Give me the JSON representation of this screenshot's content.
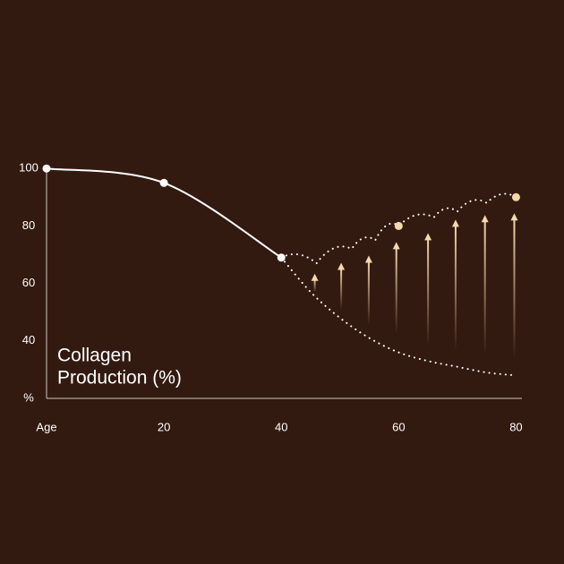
{
  "chart_data": {
    "type": "line",
    "title_lines": [
      "Collagen",
      "Production (%)"
    ],
    "background": "#331a10",
    "xlim": [
      0,
      81
    ],
    "ylim": [
      20,
      101
    ],
    "xticks": [
      {
        "value": 0,
        "label": "Age"
      },
      20,
      40,
      60,
      80
    ],
    "yticks": [
      {
        "value": 20,
        "label": "%"
      },
      40,
      60,
      80,
      100
    ],
    "series": [
      {
        "color": "#ffffff",
        "style": "solid",
        "markers": true,
        "x": [
          0,
          20,
          40
        ],
        "values": [
          100,
          95,
          69
        ]
      },
      {
        "color": "#ffffff",
        "style": "dotted",
        "markers": false,
        "x": [
          40,
          45,
          50,
          55,
          60,
          65,
          70,
          75,
          80
        ],
        "values": [
          69,
          57,
          48,
          41,
          36,
          33,
          31,
          29,
          28
        ]
      },
      {
        "color": "#ffffff",
        "style": "scallop",
        "markers": false,
        "x": [
          40,
          46,
          52,
          56,
          60,
          66,
          70,
          75,
          80
        ],
        "values": [
          69,
          67,
          72,
          75,
          80,
          83,
          85,
          88,
          90
        ]
      },
      {
        "color": "#f3d9ac",
        "style": "none",
        "markers": true,
        "x": [
          60,
          80
        ],
        "values": [
          80,
          90
        ]
      }
    ],
    "arrows": {
      "color": "#f3d9ac",
      "x": [
        45.7,
        50.2,
        54.9,
        59.6,
        65,
        69.7,
        74.7,
        79.7
      ],
      "from": [
        57,
        51,
        45.6,
        42.5,
        38.4,
        36.9,
        35.3,
        33.8
      ],
      "to": [
        63.4,
        67.2,
        69.7,
        74.4,
        77.5,
        82.2,
        83.8,
        84.4
      ]
    }
  }
}
